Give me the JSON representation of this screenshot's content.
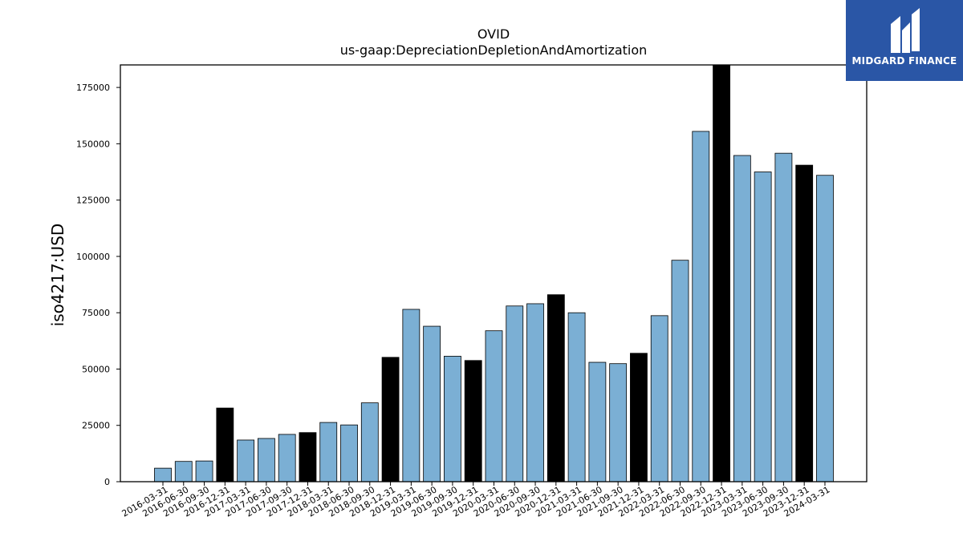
{
  "chart_data": {
    "type": "bar",
    "title": "OVID",
    "subtitle": "us-gaap:DepreciationDepletionAndAmortization",
    "xlabel": "",
    "ylabel": "iso4217:USD",
    "ylim": [
      0,
      185000
    ],
    "yticks": [
      0,
      25000,
      50000,
      75000,
      100000,
      125000,
      150000,
      175000
    ],
    "grid": false,
    "categories": [
      "2016-03-31",
      "2016-06-30",
      "2016-09-30",
      "2016-12-31",
      "2017-03-31",
      "2017-06-30",
      "2017-09-30",
      "2017-12-31",
      "2018-03-31",
      "2018-06-30",
      "2018-09-30",
      "2018-12-31",
      "2019-03-31",
      "2019-06-30",
      "2019-09-30",
      "2019-12-31",
      "2020-03-31",
      "2020-06-30",
      "2020-09-30",
      "2020-12-31",
      "2021-03-31",
      "2021-06-30",
      "2021-09-30",
      "2021-12-31",
      "2022-03-31",
      "2022-06-30",
      "2022-09-30",
      "2022-12-31",
      "2023-03-31",
      "2023-06-30",
      "2023-09-30",
      "2023-12-31",
      "2024-03-31"
    ],
    "values": [
      6000,
      9000,
      9200,
      32700,
      18500,
      19200,
      21000,
      21800,
      26300,
      25200,
      35000,
      55200,
      76500,
      69000,
      55700,
      53800,
      67000,
      78000,
      79000,
      83000,
      75000,
      53000,
      52400,
      57000,
      73700,
      98300,
      155500,
      185000,
      144800,
      137500,
      145800,
      140500,
      136000
    ],
    "highlight": [
      false,
      false,
      false,
      true,
      false,
      false,
      false,
      true,
      false,
      false,
      false,
      true,
      false,
      false,
      false,
      true,
      false,
      false,
      false,
      true,
      false,
      false,
      false,
      true,
      false,
      false,
      false,
      true,
      false,
      false,
      false,
      true,
      false
    ],
    "colors": {
      "bar": "#7bafd4",
      "highlight": "#000000",
      "edge": "#000000"
    }
  },
  "logo": {
    "text": "MIDGARD FINANCE",
    "color": "#2a56a6"
  }
}
